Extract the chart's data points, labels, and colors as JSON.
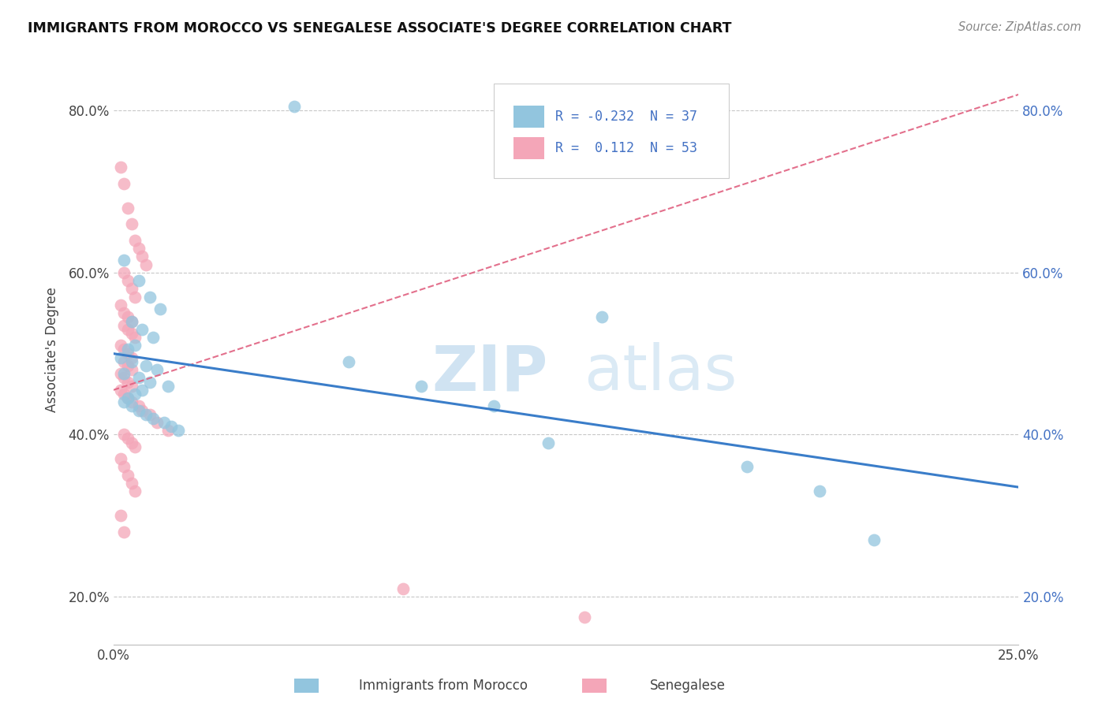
{
  "title": "IMMIGRANTS FROM MOROCCO VS SENEGALESE ASSOCIATE'S DEGREE CORRELATION CHART",
  "source_text": "Source: ZipAtlas.com",
  "ylabel": "Associate's Degree",
  "x_min": 0.0,
  "x_max": 0.25,
  "y_min": 0.14,
  "y_max": 0.87,
  "y_ticks": [
    0.2,
    0.4,
    0.6,
    0.8
  ],
  "y_tick_labels": [
    "20.0%",
    "40.0%",
    "60.0%",
    "80.0%"
  ],
  "legend_R1": "-0.232",
  "legend_N1": "37",
  "legend_R2": "0.112",
  "legend_N2": "53",
  "legend_label1": "Immigrants from Morocco",
  "legend_label2": "Senegalese",
  "color_blue": "#92c5de",
  "color_pink": "#f4a6b8",
  "color_blue_line": "#3a7dc9",
  "color_pink_line": "#e06080",
  "watermark_zip": "ZIP",
  "watermark_atlas": "atlas",
  "blue_line_x0": 0.0,
  "blue_line_y0": 0.5,
  "blue_line_x1": 0.25,
  "blue_line_y1": 0.335,
  "pink_line_x0": 0.0,
  "pink_line_y0": 0.455,
  "pink_line_x1": 0.25,
  "pink_line_y1": 0.82,
  "blue_points_x": [
    0.05,
    0.003,
    0.007,
    0.01,
    0.013,
    0.005,
    0.008,
    0.011,
    0.006,
    0.004,
    0.002,
    0.005,
    0.009,
    0.012,
    0.003,
    0.007,
    0.01,
    0.015,
    0.008,
    0.006,
    0.004,
    0.003,
    0.005,
    0.007,
    0.009,
    0.011,
    0.014,
    0.016,
    0.018,
    0.065,
    0.085,
    0.105,
    0.12,
    0.175,
    0.195,
    0.21,
    0.135
  ],
  "blue_points_y": [
    0.805,
    0.615,
    0.59,
    0.57,
    0.555,
    0.54,
    0.53,
    0.52,
    0.51,
    0.505,
    0.495,
    0.49,
    0.485,
    0.48,
    0.475,
    0.47,
    0.465,
    0.46,
    0.455,
    0.45,
    0.445,
    0.44,
    0.435,
    0.43,
    0.425,
    0.42,
    0.415,
    0.41,
    0.405,
    0.49,
    0.46,
    0.435,
    0.39,
    0.36,
    0.33,
    0.27,
    0.545
  ],
  "pink_points_x": [
    0.002,
    0.003,
    0.004,
    0.005,
    0.006,
    0.007,
    0.008,
    0.009,
    0.003,
    0.004,
    0.005,
    0.006,
    0.002,
    0.003,
    0.004,
    0.005,
    0.003,
    0.004,
    0.005,
    0.006,
    0.002,
    0.003,
    0.004,
    0.005,
    0.003,
    0.004,
    0.005,
    0.002,
    0.003,
    0.004,
    0.005,
    0.002,
    0.003,
    0.004,
    0.005,
    0.007,
    0.008,
    0.01,
    0.012,
    0.015,
    0.003,
    0.004,
    0.005,
    0.006,
    0.002,
    0.003,
    0.004,
    0.005,
    0.006,
    0.002,
    0.003,
    0.08,
    0.13
  ],
  "pink_points_y": [
    0.73,
    0.71,
    0.68,
    0.66,
    0.64,
    0.63,
    0.62,
    0.61,
    0.6,
    0.59,
    0.58,
    0.57,
    0.56,
    0.55,
    0.545,
    0.54,
    0.535,
    0.53,
    0.525,
    0.52,
    0.51,
    0.505,
    0.5,
    0.495,
    0.49,
    0.485,
    0.48,
    0.475,
    0.47,
    0.465,
    0.46,
    0.455,
    0.45,
    0.445,
    0.44,
    0.435,
    0.43,
    0.425,
    0.415,
    0.405,
    0.4,
    0.395,
    0.39,
    0.385,
    0.37,
    0.36,
    0.35,
    0.34,
    0.33,
    0.3,
    0.28,
    0.21,
    0.175
  ]
}
